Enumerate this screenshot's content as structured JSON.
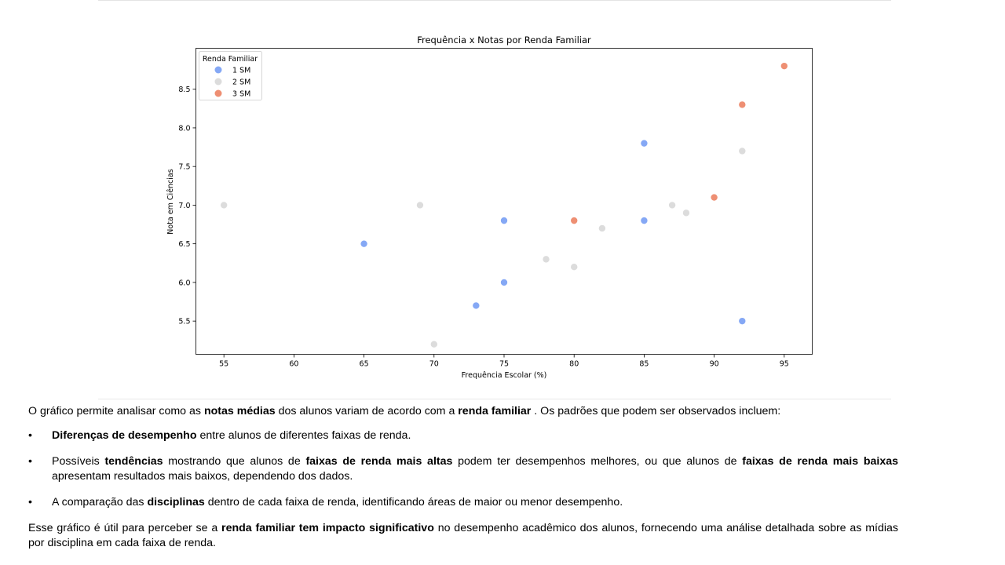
{
  "chart_data": {
    "type": "scatter",
    "title": "Frequência x Notas por Renda Familiar",
    "xlabel": "Frequência Escolar (%)",
    "ylabel": "Nota em Ciências",
    "xlim": [
      53,
      97
    ],
    "ylim": [
      5.07,
      9.03
    ],
    "xticks": [
      55,
      60,
      65,
      70,
      75,
      80,
      85,
      90,
      95
    ],
    "yticks": [
      5.5,
      6.0,
      6.5,
      7.0,
      7.5,
      8.0,
      8.5
    ],
    "grid": false,
    "legend": {
      "title": "Renda Familiar",
      "placement": "top-left"
    },
    "series": [
      {
        "name": "1 SM",
        "color": "#85a8f5",
        "points": [
          [
            65,
            6.5
          ],
          [
            73,
            5.7
          ],
          [
            75,
            6.8
          ],
          [
            75,
            6.0
          ],
          [
            85,
            7.8
          ],
          [
            85,
            6.8
          ],
          [
            92,
            5.5
          ]
        ]
      },
      {
        "name": "2 SM",
        "color": "#dcdcdc",
        "points": [
          [
            55,
            7.0
          ],
          [
            69,
            7.0
          ],
          [
            70,
            5.2
          ],
          [
            78,
            6.3
          ],
          [
            80,
            6.2
          ],
          [
            82,
            6.7
          ],
          [
            87,
            7.0
          ],
          [
            88,
            6.9
          ],
          [
            92,
            7.7
          ]
        ]
      },
      {
        "name": "3 SM",
        "color": "#ee8f73",
        "points": [
          [
            80,
            6.8
          ],
          [
            90,
            7.1
          ],
          [
            92,
            8.3
          ],
          [
            95,
            8.8
          ]
        ]
      }
    ]
  },
  "text": {
    "intro": {
      "t1": "O gráfico permite analisar como as ",
      "b1": "notas médias",
      "t2": " dos alunos variam de acordo com a ",
      "b2": "renda familiar",
      "t3": " . Os padrões que podem ser observados incluem:"
    },
    "bullets": [
      {
        "dot": "•",
        "b1": "Diferenças de desempenho",
        "t1": " entre alunos de diferentes faixas de renda."
      },
      {
        "dot": "•",
        "t1": "Possíveis ",
        "b1": "tendências",
        "t2": " mostrando que alunos de ",
        "b2": "faixas de renda mais altas",
        "t3": " podem ter desempenhos melhores, ou que alunos de ",
        "b3": "faixas de renda mais baixas",
        "t4": " apresentam resultados mais baixos, dependendo dos dados."
      },
      {
        "dot": "•",
        "t1": "A comparação das ",
        "b1": "disciplinas",
        "t2": " dentro de cada faixa de renda, identificando áreas de maior ou menor desempenho."
      }
    ],
    "conclusion": {
      "t1": "Esse gráfico é útil para perceber se a ",
      "b1": "renda familiar tem impacto significativo",
      "t2": " no desempenho acadêmico dos alunos, fornecendo uma análise detalhada sobre as mídias por disciplina em cada faixa de renda."
    }
  }
}
